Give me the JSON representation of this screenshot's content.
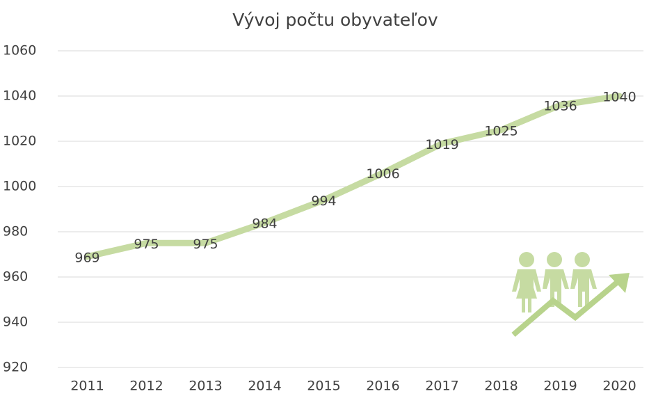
{
  "chart_data": {
    "type": "line",
    "title": "Vývoj počtu obyvateľov",
    "categories": [
      "2011",
      "2012",
      "2013",
      "2014",
      "2015",
      "2016",
      "2017",
      "2018",
      "2019",
      "2020"
    ],
    "values": [
      969,
      975,
      975,
      984,
      994,
      1006,
      1019,
      1025,
      1036,
      1040
    ],
    "color": "#c6dba2",
    "ylim": [
      920,
      1060
    ],
    "yticks": [
      920,
      940,
      960,
      980,
      1000,
      1020,
      1040,
      1060
    ],
    "grid": true
  }
}
